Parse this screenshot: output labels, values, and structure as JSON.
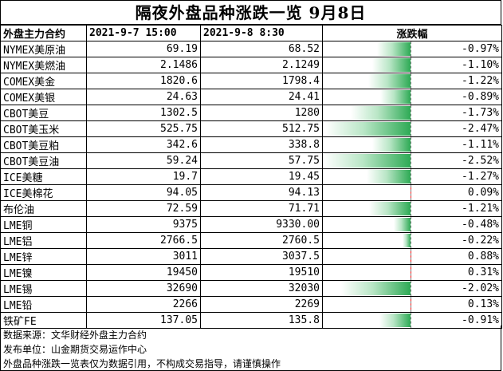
{
  "title": "隔夜外盘品种涨跌一览  9月8日",
  "headers": {
    "col1": "外盘主力合约",
    "col2": "2021-9-7 15:00",
    "col3": "2021-9-8 8:30",
    "col4": "涨跌幅"
  },
  "chart_data": {
    "type": "table",
    "title": "隔夜外盘品种涨跌一览  9月8日",
    "columns": [
      "外盘主力合约",
      "2021-9-7 15:00",
      "2021-9-8 8:30",
      "涨跌幅"
    ],
    "rows": [
      {
        "name": "NYMEX美原油",
        "prev": "69.19",
        "curr": "68.52",
        "change": -0.97,
        "change_label": "-0.97%"
      },
      {
        "name": "NYMEX美燃油",
        "prev": "2.1486",
        "curr": "2.1249",
        "change": -1.1,
        "change_label": "-1.10%"
      },
      {
        "name": "COMEX美金",
        "prev": "1820.6",
        "curr": "1798.4",
        "change": -1.22,
        "change_label": "-1.22%"
      },
      {
        "name": "COMEX美银",
        "prev": "24.63",
        "curr": "24.41",
        "change": -0.89,
        "change_label": "-0.89%"
      },
      {
        "name": "CBOT美豆",
        "prev": "1302.5",
        "curr": "1280",
        "change": -1.73,
        "change_label": "-1.73%"
      },
      {
        "name": "CBOT美玉米",
        "prev": "525.75",
        "curr": "512.75",
        "change": -2.47,
        "change_label": "-2.47%"
      },
      {
        "name": "CBOT美豆粕",
        "prev": "342.6",
        "curr": "338.8",
        "change": -1.11,
        "change_label": "-1.11%"
      },
      {
        "name": "CBOT美豆油",
        "prev": "59.24",
        "curr": "57.75",
        "change": -2.52,
        "change_label": "-2.52%"
      },
      {
        "name": "ICE美糖",
        "prev": "19.7",
        "curr": "19.45",
        "change": -1.27,
        "change_label": "-1.27%"
      },
      {
        "name": "ICE美棉花",
        "prev": "94.05",
        "curr": "94.13",
        "change": 0.09,
        "change_label": "0.09%"
      },
      {
        "name": "布伦油",
        "prev": "72.59",
        "curr": "71.71",
        "change": -1.21,
        "change_label": "-1.21%"
      },
      {
        "name": "LME铜",
        "prev": "9375",
        "curr": "9330.00",
        "change": -0.48,
        "change_label": "-0.48%"
      },
      {
        "name": "LME铝",
        "prev": "2766.5",
        "curr": "2760.5",
        "change": -0.22,
        "change_label": "-0.22%"
      },
      {
        "name": "LME锌",
        "prev": "3011",
        "curr": "3037.5",
        "change": 0.88,
        "change_label": "0.88%"
      },
      {
        "name": "LME镍",
        "prev": "19450",
        "curr": "19510",
        "change": 0.31,
        "change_label": "0.31%"
      },
      {
        "name": "LME锡",
        "prev": "32690",
        "curr": "32030",
        "change": -2.02,
        "change_label": "-2.02%"
      },
      {
        "name": "LME铅",
        "prev": "2266",
        "curr": "2269",
        "change": 0.13,
        "change_label": "0.13%"
      },
      {
        "name": "铁矿FE",
        "prev": "137.05",
        "curr": "135.8",
        "change": -0.91,
        "change_label": "-0.91%"
      }
    ],
    "bar_range": [
      -2.52,
      0.88
    ],
    "colors": {
      "negative": "#2eaa55",
      "positive": "#ff0000"
    }
  },
  "footer": {
    "source": "数据来源：文华财经外盘主力合约",
    "publisher": "发布单位：山金期货交易运作中心",
    "disclaimer": "外盘品种涨跌一览表仅为数据引用，不构成交易指导，请谨慎操作"
  }
}
